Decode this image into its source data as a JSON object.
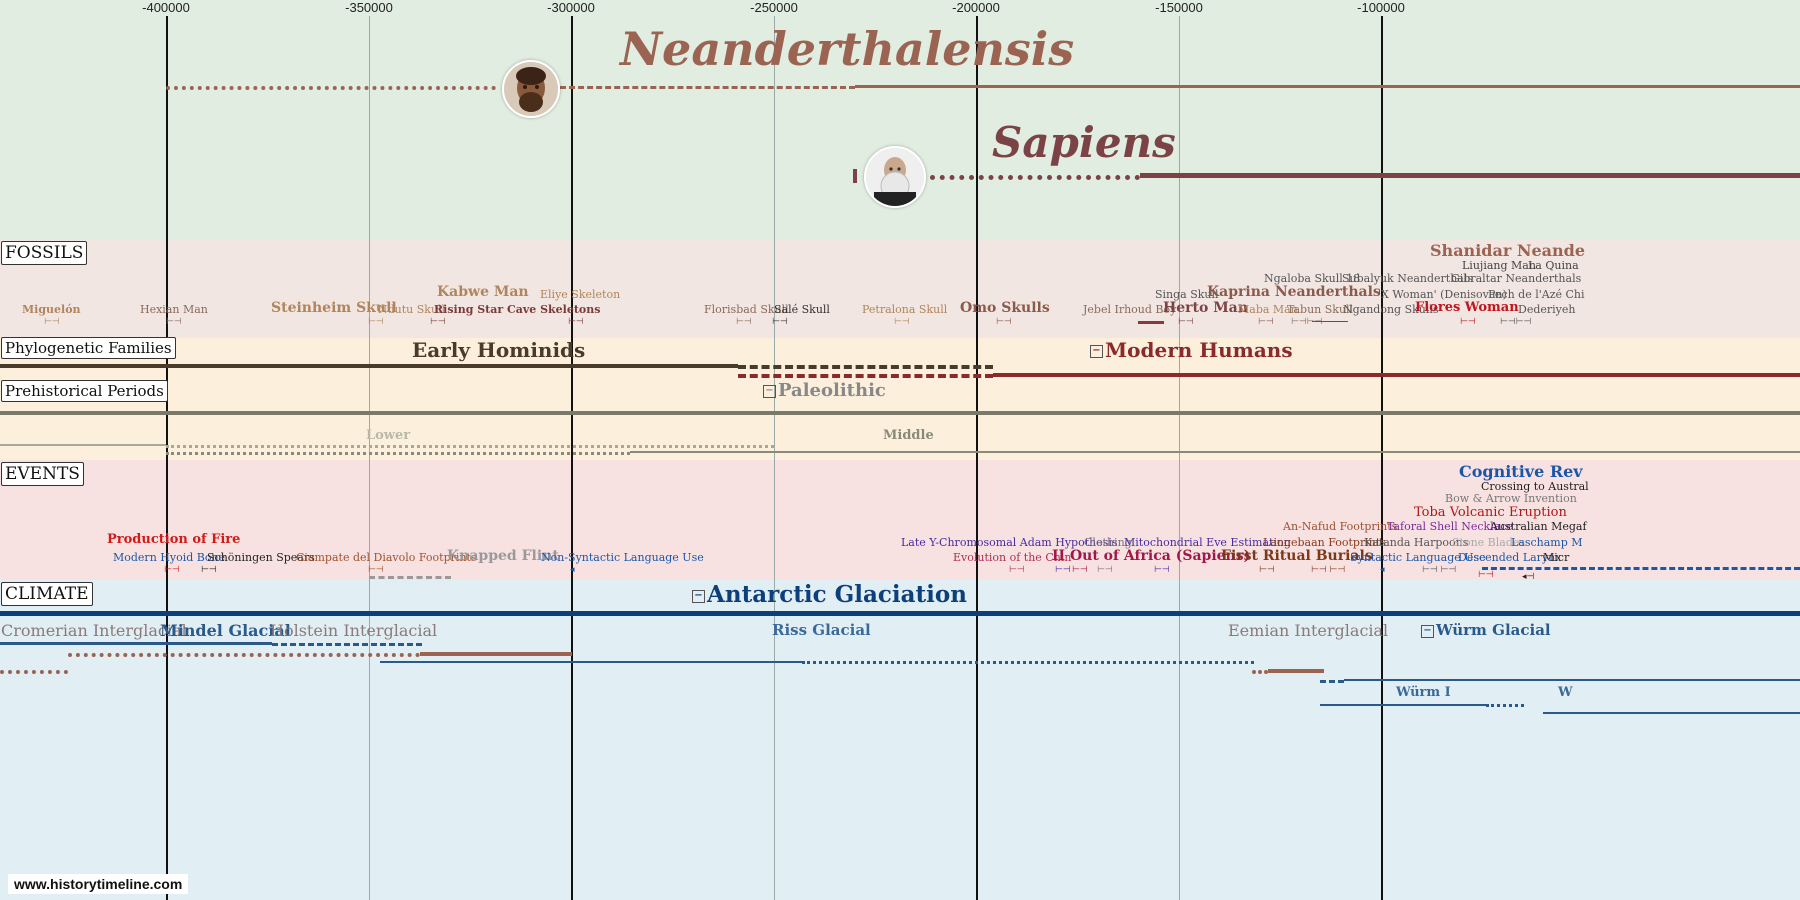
{
  "axis_ticks": [
    "-400000",
    "-350000",
    "-300000",
    "-250000",
    "-200000",
    "-150000",
    "-100000"
  ],
  "species": {
    "neanderthalensis": "Neanderthalensis",
    "sapiens": "Sapiens",
    "neanderthal_avatar": "neanderthal-portrait",
    "sapiens_avatar": "darwin-portrait"
  },
  "sections": {
    "fossils": "FOSSILS",
    "phylogenetic": "Phylogenetic Families",
    "prehistorical": "Prehistorical Periods",
    "events": "EVENTS",
    "climate": "CLIMATE"
  },
  "fossils": {
    "miguelon": "Miguelón",
    "hexian": "Hexian Man",
    "steinheim": "Steinheim Skull",
    "ndutu": "Ndutu Skull",
    "rising_star": "Rising Star Cave Skeletons",
    "kabwe": "Kabwe Man",
    "eliye": "Eliye Skeleton",
    "florisbad": "Florisbad Skull",
    "sale": "Salé Skull",
    "petralona": "Petralona Skull",
    "omo": "Omo Skulls",
    "jebel": "Jebel Irhoud Boy",
    "singa": "Singa Skull",
    "herto": "Herto Man",
    "kaprina": "Kaprina Neanderthals",
    "ngaloba": "Ngaloba Skull 18",
    "subalyuk": "Subalyuk Neanderthals",
    "gibraltar": "Gibraltar Neanderthals",
    "maba": "Maba Man",
    "tabun": "Tabun Skull",
    "ngandong": "Ngandong Skulls",
    "x_woman": "'X Woman' (Denisovan)",
    "peche": "Pech de l'Azé Chi",
    "flores": "Flores Woman",
    "dederiyeh": "Dederiyeh",
    "liujiang": "Liujiang Man",
    "la_quina": "La Quina",
    "shanidar": "Shanidar Neande"
  },
  "phylo": {
    "early": "Early Hominids",
    "modern": "Modern Humans"
  },
  "periods": {
    "paleolithic": "Paleolithic",
    "lower": "Lower",
    "middle": "Middle"
  },
  "events": {
    "production_fire": "Production of Fire",
    "hyoid": "Modern Hyoid Bone",
    "schoningen": "Schöningen Spears",
    "ciampate": "Ciampate del Diavolo Footprints",
    "knapped": "Knapped Flint",
    "non_syntactic": "Non-Syntactic Language Use",
    "y_adam": "Late Y-Chromosomal Adam Hypothesis",
    "clothing": "Clothing",
    "mito_eve": "Mitochondrial Eve Estimation",
    "chin": "Evolution of the Chin",
    "out_africa": "II Out of Africa (Sapiens)",
    "ritual": "First Ritual Burials",
    "langebaan": "Langebaan Footprints",
    "katanda": "Katanda Harpoons",
    "stone_blades": "Stone Blades",
    "laschamp": "Laschamp M",
    "syntactic": "Syntactic Language Use",
    "larynx": "Descended Larynx",
    "micro": "Micr",
    "an_nafud": "An-Nafud Footprints",
    "taforal": "Taforal Shell Necklace",
    "megafauna": "Australian Megaf",
    "toba": "Toba Volcanic Eruption",
    "bow": "Bow & Arrow Invention",
    "crossing": "Crossing to Austral",
    "cognitive": "Cognitive Rev"
  },
  "climate": {
    "antarctic": "Antarctic Glaciation",
    "cromerian": "Cromerian Interglacial",
    "mindel": "Mindel Glacial",
    "holstein": "Holstein Interglacial",
    "riss": "Riss Glacial",
    "eemian": "Eemian Interglacial",
    "wurm": "Würm Glacial",
    "wurm1": "Würm I",
    "wurm_next": "W"
  },
  "credit": "www.historytimeline.com",
  "colors": {
    "species_band": "#e1ede1",
    "fossils_band": "#f2e6e2",
    "phylo_band": "#fcf0dd",
    "events_band": "#f7e1e1",
    "climate_band": "#e1eef4",
    "neanderthal": "#9b6452",
    "sapiens": "#7b4346",
    "climate_main": "#0d3f7a"
  }
}
